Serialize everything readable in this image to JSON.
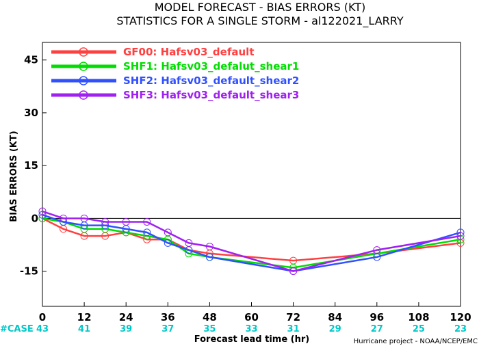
{
  "chart_data": {
    "type": "line",
    "title": "MODEL FORECAST - BIAS ERRORS (KT)",
    "subtitle": "STATISTICS FOR A SINGLE STORM - al122021_LARRY",
    "xlabel": "Forecast lead time (hr)",
    "ylabel": "BIAS ERRORS (KT)",
    "xlim": [
      0,
      120
    ],
    "ylim": [
      -25,
      50
    ],
    "xticks": [
      "0",
      "12",
      "24",
      "36",
      "48",
      "60",
      "72",
      "84",
      "96",
      "108",
      "120"
    ],
    "yticks": [
      "45",
      "30",
      "15",
      "0",
      "-15"
    ],
    "ytick_values": [
      45,
      30,
      15,
      0,
      -15
    ],
    "x": [
      0,
      6,
      12,
      18,
      24,
      30,
      36,
      42,
      48,
      72,
      96,
      120
    ],
    "series": [
      {
        "name": "GF00: Hafsv03_default",
        "color": "#ff4040",
        "values": [
          0,
          -3,
          -5,
          -5,
          -4,
          -6,
          -6,
          -9,
          -10,
          -12,
          -10,
          -7
        ]
      },
      {
        "name": "SHF1: Hafsv03_defalut_shear1",
        "color": "#00dd00",
        "values": [
          0,
          -1,
          -3,
          -3,
          -4,
          -5,
          -6,
          -10,
          -11,
          -14,
          -10,
          -6
        ]
      },
      {
        "name": "SHF2: Hafsv03_default_shear2",
        "color": "#3050ff",
        "values": [
          1,
          -1,
          -2,
          -2,
          -3,
          -4,
          -7,
          -9,
          -11,
          -15,
          -11,
          -4
        ]
      },
      {
        "name": "SHF3: Hafsv03_default_shear3",
        "color": "#a020f0",
        "values": [
          2,
          0,
          0,
          -1,
          -1,
          -1,
          -4,
          -7,
          -8,
          -15,
          -9,
          -5
        ]
      }
    ],
    "case_label": "#CASE",
    "case_x": [
      0,
      12,
      24,
      36,
      48,
      60,
      72,
      84,
      96,
      108,
      120
    ],
    "case_counts": [
      "43",
      "41",
      "39",
      "37",
      "35",
      "33",
      "31",
      "29",
      "27",
      "25",
      "23"
    ],
    "case_color": "#00c8c8",
    "credit": "Hurricane project - NOAA/NCEP/EMC",
    "zero_line": true,
    "grid": false,
    "legend_position": "top-left"
  }
}
